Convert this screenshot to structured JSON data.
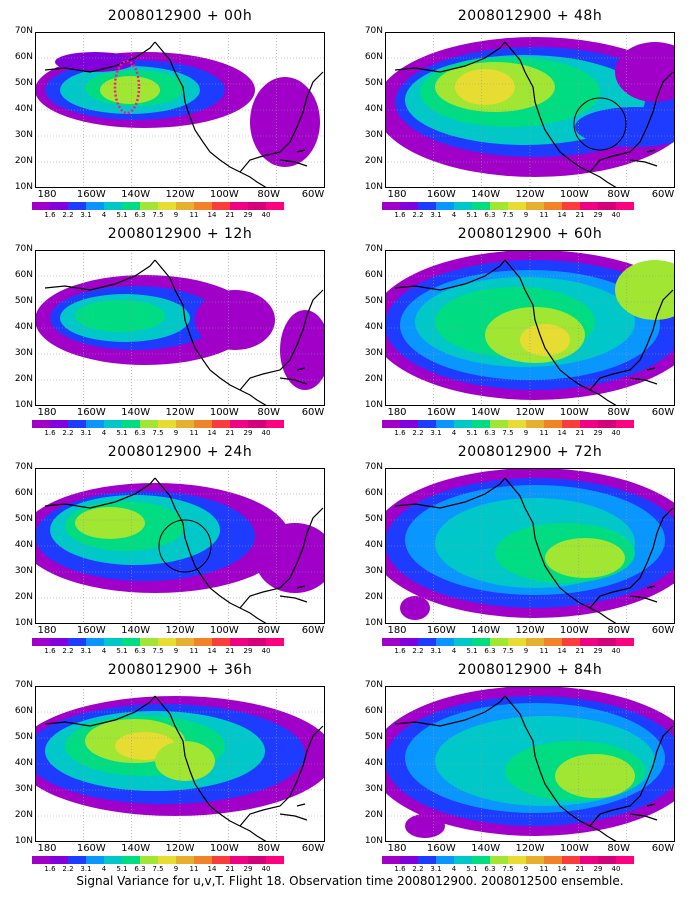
{
  "y_ticks": [
    "70N",
    "60N",
    "50N",
    "40N",
    "30N",
    "20N",
    "10N"
  ],
  "x_ticks": [
    "180",
    "160W",
    "140W",
    "120W",
    "100W",
    "80W",
    "60W"
  ],
  "colorbar": {
    "labels": [
      "1.6",
      "2.2",
      "3.1",
      "4",
      "5.1",
      "6.3",
      "7.5",
      "9",
      "11",
      "14",
      "21",
      "29",
      "40"
    ],
    "colors": [
      "#a000c8",
      "#8200dc",
      "#1e3cff",
      "#0a96ff",
      "#00c8c8",
      "#00dc82",
      "#a0e632",
      "#e6dc32",
      "#e6af2d",
      "#f08228",
      "#fa3c3c",
      "#f00082",
      "#d4007a"
    ]
  },
  "panels": [
    {
      "title": "2008012900 + 00h"
    },
    {
      "title": "2008012900 + 48h"
    },
    {
      "title": "2008012900 + 12h"
    },
    {
      "title": "2008012900 + 60h"
    },
    {
      "title": "2008012900 + 24h"
    },
    {
      "title": "2008012900 + 72h"
    },
    {
      "title": "2008012900 + 36h"
    },
    {
      "title": "2008012900 + 84h"
    }
  ],
  "footer": "Signal Variance for u,v,T. Flight 18. Observation time 2008012900. 2008012500 ensemble."
}
